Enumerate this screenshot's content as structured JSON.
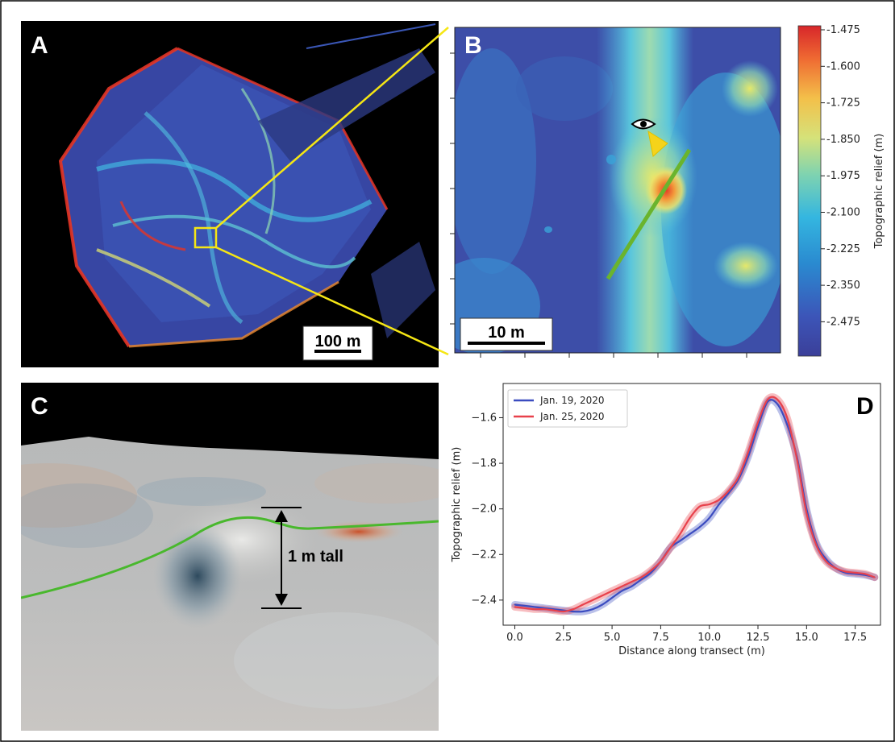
{
  "panels": {
    "a": {
      "label": "A",
      "scale_bar": "100 m"
    },
    "b": {
      "label": "B",
      "scale_bar": "10 m"
    },
    "c": {
      "label": "C",
      "height_label": "1 m tall"
    },
    "d": {
      "label": "D"
    }
  },
  "colorbar": {
    "label": "Topographic relief (m)",
    "ticks": [
      "-1.475",
      "-1.600",
      "-1.725",
      "-1.850",
      "-1.975",
      "-2.100",
      "-2.225",
      "-2.350",
      "-2.475"
    ],
    "colormap": "jet-like (blue low, red high)"
  },
  "colors": {
    "jan19": "#3b4cc0",
    "jan25": "#e8414b",
    "transect": "#6ab42d",
    "callout": "#f5e614"
  },
  "chart_data": {
    "type": "line",
    "xlabel": "Distance along transect (m)",
    "ylabel": "Topographic relief (m)",
    "xlim": [
      -0.6,
      18.8
    ],
    "ylim": [
      -2.51,
      -1.45
    ],
    "xticks": [
      0.0,
      2.5,
      5.0,
      7.5,
      10.0,
      12.5,
      15.0,
      17.5
    ],
    "xtick_labels": [
      "0.0",
      "2.5",
      "5.0",
      "7.5",
      "10.0",
      "12.5",
      "15.0",
      "17.5"
    ],
    "yticks": [
      -2.4,
      -2.2,
      -2.0,
      -1.8,
      -1.6
    ],
    "ytick_labels": [
      "−2.4",
      "−2.2",
      "−2.0",
      "−1.8",
      "−1.6"
    ],
    "legend_position": "top-left",
    "grid": false,
    "series": [
      {
        "name": "Jan. 19, 2020",
        "color": "#3b4cc0",
        "x": [
          0,
          0.5,
          1,
          1.5,
          2,
          2.5,
          3,
          3.5,
          4,
          4.5,
          5,
          5.5,
          6,
          6.5,
          7,
          7.5,
          8,
          8.5,
          9,
          9.5,
          10,
          10.5,
          11,
          11.5,
          12,
          12.5,
          13,
          13.5,
          14,
          14.5,
          15,
          15.5,
          16,
          16.5,
          17,
          17.5,
          18,
          18.5
        ],
        "y": [
          -2.42,
          -2.425,
          -2.43,
          -2.435,
          -2.44,
          -2.445,
          -2.45,
          -2.45,
          -2.44,
          -2.42,
          -2.39,
          -2.36,
          -2.34,
          -2.31,
          -2.28,
          -2.23,
          -2.17,
          -2.14,
          -2.11,
          -2.08,
          -2.04,
          -1.98,
          -1.93,
          -1.87,
          -1.77,
          -1.64,
          -1.53,
          -1.54,
          -1.63,
          -1.77,
          -2.0,
          -2.15,
          -2.22,
          -2.26,
          -2.28,
          -2.285,
          -2.29,
          -2.3
        ]
      },
      {
        "name": "Jan. 25, 2020",
        "color": "#e8414b",
        "x": [
          0,
          0.5,
          1,
          1.5,
          2,
          2.5,
          3,
          3.5,
          4,
          4.5,
          5,
          5.5,
          6,
          6.5,
          7,
          7.5,
          8,
          8.5,
          9,
          9.5,
          10,
          10.5,
          11,
          11.5,
          12,
          12.5,
          13,
          13.5,
          14,
          14.5,
          15,
          15.5,
          16,
          16.5,
          17,
          17.5,
          18,
          18.5
        ],
        "y": [
          -2.43,
          -2.435,
          -2.44,
          -2.44,
          -2.445,
          -2.45,
          -2.44,
          -2.42,
          -2.4,
          -2.38,
          -2.36,
          -2.34,
          -2.32,
          -2.3,
          -2.27,
          -2.23,
          -2.17,
          -2.11,
          -2.04,
          -1.99,
          -1.98,
          -1.96,
          -1.92,
          -1.86,
          -1.75,
          -1.62,
          -1.52,
          -1.52,
          -1.6,
          -1.78,
          -2.02,
          -2.16,
          -2.23,
          -2.26,
          -2.275,
          -2.28,
          -2.285,
          -2.3
        ]
      }
    ]
  }
}
